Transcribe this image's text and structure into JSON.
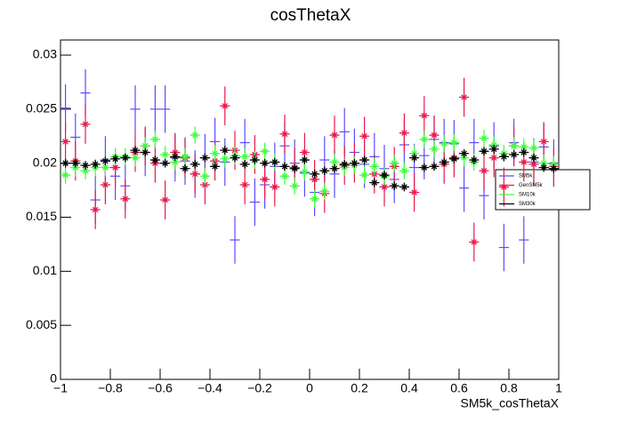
{
  "chart_data": {
    "type": "errorbar",
    "title": "cosThetaX",
    "x_label": "SM5k_cosThetaX",
    "xlim": [
      -1,
      1
    ],
    "ylim": [
      0,
      0.0314
    ],
    "xticks": [
      {
        "value": -1,
        "label": "−1"
      },
      {
        "value": -0.8,
        "label": "−0.8"
      },
      {
        "value": -0.6,
        "label": "−0.6"
      },
      {
        "value": -0.4,
        "label": "−0.4"
      },
      {
        "value": -0.2,
        "label": "−0.2"
      },
      0,
      0.2,
      0.4,
      0.6,
      0.8,
      1
    ],
    "yticks": [
      0,
      0.005,
      0.01,
      0.015,
      0.02,
      0.025,
      0.03
    ],
    "legend": "right",
    "x": [
      -0.98,
      -0.94,
      -0.9,
      -0.86,
      -0.82,
      -0.78,
      -0.74,
      -0.7,
      -0.66,
      -0.62,
      -0.58,
      -0.54,
      -0.5,
      -0.46,
      -0.42,
      -0.38,
      -0.34,
      -0.3,
      -0.26,
      -0.22,
      -0.18,
      -0.14,
      -0.1,
      -0.06,
      -0.02,
      0.02,
      0.06,
      0.1,
      0.14,
      0.18,
      0.22,
      0.26,
      0.3,
      0.34,
      0.38,
      0.42,
      0.46,
      0.5,
      0.54,
      0.58,
      0.62,
      0.66,
      0.7,
      0.74,
      0.78,
      0.82,
      0.86,
      0.9,
      0.94,
      0.98
    ],
    "series": [
      {
        "name": "SM5k",
        "color": "#5a4dff",
        "marker": false,
        "error": 0.0022,
        "values": [
          0.0251,
          0.0224,
          0.0265,
          0.0166,
          0.0203,
          0.0188,
          0.0179,
          0.025,
          0.021,
          0.025,
          0.025,
          0.0205,
          0.0202,
          0.019,
          0.0205,
          0.022,
          0.0201,
          0.0129,
          0.0219,
          0.0164,
          0.018,
          0.0197,
          0.0216,
          0.02,
          0.0191,
          0.0173,
          0.0203,
          0.019,
          0.0229,
          0.021,
          0.0199,
          0.0206,
          0.0195,
          0.0185,
          0.0217,
          0.0196,
          0.0207,
          0.0222,
          0.0219,
          0.0218,
          0.0177,
          0.0219,
          0.017,
          0.0216,
          0.0122,
          0.0219,
          0.0129,
          0.0201,
          0.0215,
          0.02
        ]
      },
      {
        "name": "GenSM5k",
        "color": "#e8194b",
        "marker": true,
        "error": 0.0018,
        "values": [
          0.022,
          0.0202,
          0.0236,
          0.0157,
          0.018,
          0.0196,
          0.0167,
          0.021,
          0.0216,
          0.02,
          0.0166,
          0.021,
          0.0205,
          0.019,
          0.018,
          0.0202,
          0.0253,
          0.0212,
          0.018,
          0.0208,
          0.0185,
          0.0178,
          0.0227,
          0.0196,
          0.021,
          0.0185,
          0.0172,
          0.0226,
          0.0198,
          0.02,
          0.0225,
          0.019,
          0.0178,
          0.0197,
          0.0228,
          0.0173,
          0.0244,
          0.0226,
          0.0199,
          0.0205,
          0.0261,
          0.0127,
          0.0193,
          0.0205,
          0.0178,
          0.0216,
          0.0201,
          0.0199,
          0.022,
          0.0197
        ]
      },
      {
        "name": "SM10k",
        "color": "#3dff3d",
        "marker": true,
        "error": 0.0008,
        "values": [
          0.0189,
          0.0196,
          0.0193,
          0.0196,
          0.0196,
          0.0206,
          0.0206,
          0.0205,
          0.0216,
          0.0222,
          0.0208,
          0.0201,
          0.0206,
          0.0226,
          0.0188,
          0.0209,
          0.0204,
          0.0207,
          0.0206,
          0.0203,
          0.0211,
          0.0201,
          0.0188,
          0.0179,
          0.0192,
          0.0167,
          0.0174,
          0.0201,
          0.0196,
          0.0198,
          0.0189,
          0.0197,
          0.0188,
          0.02,
          0.0193,
          0.0209,
          0.0222,
          0.0213,
          0.0218,
          0.0219,
          0.0205,
          0.0201,
          0.0223,
          0.0217,
          0.0209,
          0.0216,
          0.0215,
          0.0214,
          0.02,
          0.0199
        ]
      },
      {
        "name": "SM30k",
        "color": "#000000",
        "marker": true,
        "error": 0.0004,
        "values": [
          0.02,
          0.02,
          0.0198,
          0.0199,
          0.0202,
          0.0204,
          0.0205,
          0.0212,
          0.021,
          0.0203,
          0.02,
          0.0206,
          0.0195,
          0.0199,
          0.0205,
          0.0197,
          0.0212,
          0.0205,
          0.0199,
          0.0203,
          0.02,
          0.0201,
          0.0197,
          0.0195,
          0.0203,
          0.019,
          0.0193,
          0.0195,
          0.0199,
          0.02,
          0.0203,
          0.0182,
          0.0189,
          0.0179,
          0.0178,
          0.0205,
          0.0196,
          0.0197,
          0.0201,
          0.0204,
          0.0209,
          0.0203,
          0.0211,
          0.0213,
          0.0206,
          0.0208,
          0.021,
          0.0205,
          0.0196,
          0.0195
        ]
      }
    ]
  }
}
